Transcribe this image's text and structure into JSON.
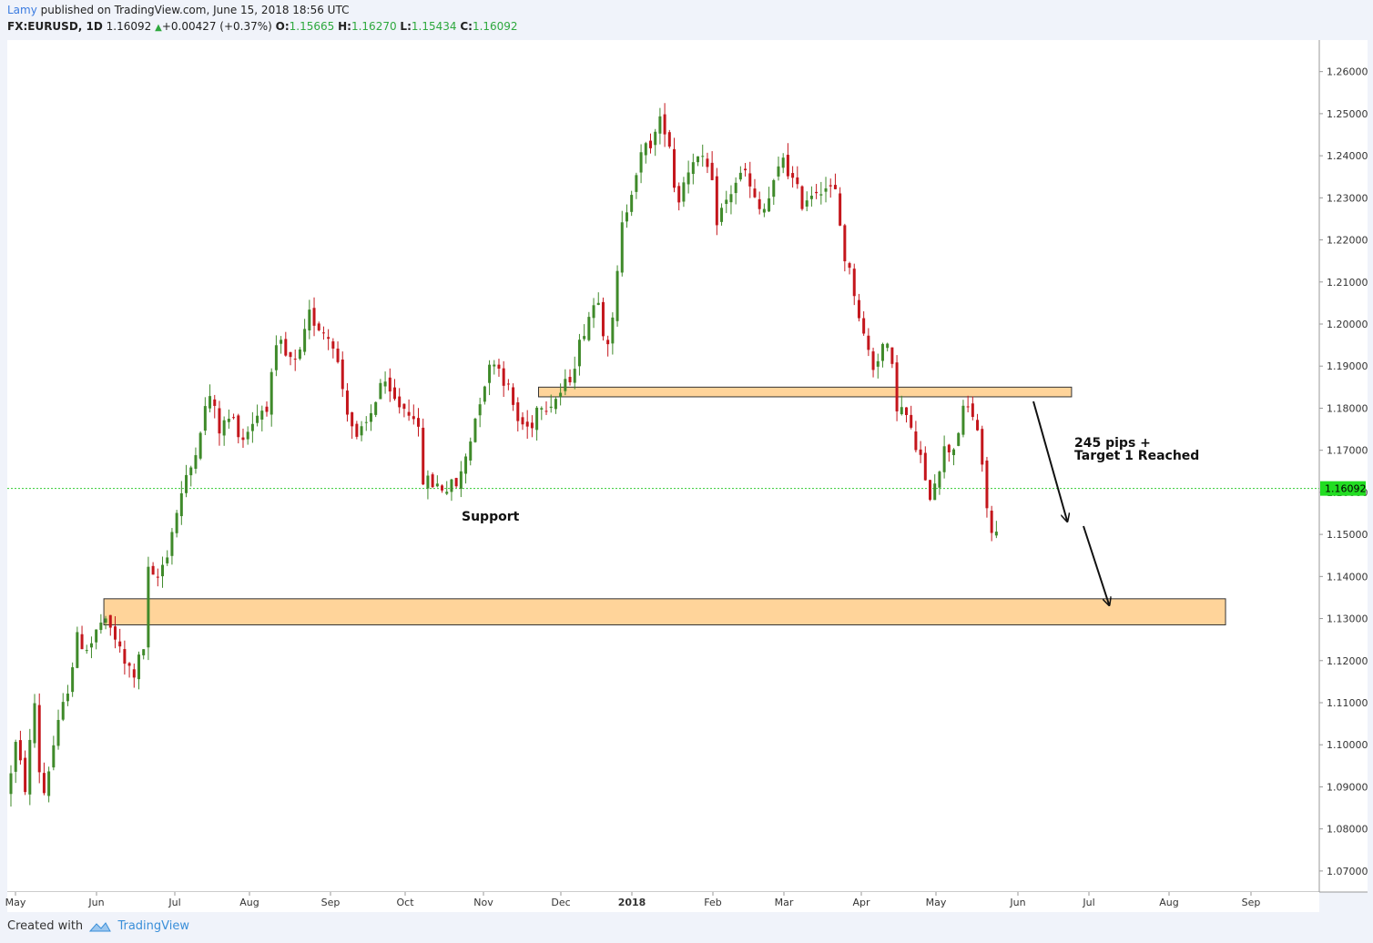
{
  "header": {
    "author": "Lamy",
    "published_text": "published on TradingView.com, June 15, 2018 18:56 UTC",
    "symbol": "FX:EURUSD, 1D",
    "last": "1.16092",
    "change": "+0.00427 (+0.37%)",
    "open_label": "O:",
    "open": "1.15665",
    "high_label": "H:",
    "high": "1.16270",
    "low_label": "L:",
    "low": "1.15434",
    "close_label": "C:",
    "close": "1.16092"
  },
  "footer": {
    "created_with": "Created with",
    "brand": "TradingView"
  },
  "colors": {
    "up": "#3f8a2a",
    "down": "#c4161c",
    "zone_fill": "#ffcc88",
    "zone_stroke": "#333333",
    "price_tag": "#22dd22"
  },
  "chart_data": {
    "type": "candlestick",
    "symbol": "FX:EURUSD",
    "timeframe": "1D",
    "ylim": [
      1.065,
      1.2675
    ],
    "y_ticks": [
      "1.26000",
      "1.25000",
      "1.24000",
      "1.23000",
      "1.22000",
      "1.21000",
      "1.20000",
      "1.19000",
      "1.18000",
      "1.17000",
      "1.16000",
      "1.15000",
      "1.14000",
      "1.13000",
      "1.12000",
      "1.11000",
      "1.10000",
      "1.09000",
      "1.08000",
      "1.07000"
    ],
    "x_ticks": [
      "May",
      "Jun",
      "Jul",
      "Aug",
      "Sep",
      "Oct",
      "Nov",
      "Dec",
      "2018",
      "Feb",
      "Mar",
      "Apr",
      "May",
      "Jun",
      "Jul",
      "Aug",
      "Sep"
    ],
    "current_price_label": "1.16092",
    "current_price": 1.16092,
    "path": [
      [
        0,
        1.088
      ],
      [
        8,
        1.1
      ],
      [
        16,
        1.09
      ],
      [
        24,
        1.11
      ],
      [
        30,
        1.086
      ],
      [
        40,
        1.1
      ],
      [
        50,
        1.111
      ],
      [
        60,
        1.125
      ],
      [
        70,
        1.123
      ],
      [
        80,
        1.129
      ],
      [
        90,
        1.127
      ],
      [
        100,
        1.119
      ],
      [
        108,
        1.117
      ],
      [
        116,
        1.123
      ],
      [
        120,
        1.141
      ],
      [
        126,
        1.138
      ],
      [
        136,
        1.146
      ],
      [
        146,
        1.158
      ],
      [
        156,
        1.166
      ],
      [
        166,
        1.178
      ],
      [
        172,
        1.183
      ],
      [
        180,
        1.175
      ],
      [
        190,
        1.178
      ],
      [
        200,
        1.173
      ],
      [
        210,
        1.178
      ],
      [
        220,
        1.181
      ],
      [
        230,
        1.196
      ],
      [
        236,
        1.192
      ],
      [
        246,
        1.19
      ],
      [
        256,
        1.202
      ],
      [
        266,
        1.199
      ],
      [
        276,
        1.196
      ],
      [
        286,
        1.182
      ],
      [
        296,
        1.172
      ],
      [
        306,
        1.177
      ],
      [
        316,
        1.186
      ],
      [
        326,
        1.182
      ],
      [
        336,
        1.18
      ],
      [
        346,
        1.179
      ],
      [
        352,
        1.163
      ],
      [
        362,
        1.162
      ],
      [
        372,
        1.161
      ],
      [
        382,
        1.162
      ],
      [
        392,
        1.173
      ],
      [
        402,
        1.185
      ],
      [
        412,
        1.192
      ],
      [
        422,
        1.186
      ],
      [
        432,
        1.177
      ],
      [
        442,
        1.175
      ],
      [
        450,
        1.182
      ],
      [
        458,
        1.181
      ],
      [
        466,
        1.183
      ],
      [
        474,
        1.186
      ],
      [
        482,
        1.193
      ],
      [
        490,
        1.201
      ],
      [
        500,
        1.207
      ],
      [
        506,
        1.195
      ],
      [
        512,
        1.2
      ],
      [
        520,
        1.223
      ],
      [
        530,
        1.235
      ],
      [
        538,
        1.241
      ],
      [
        546,
        1.244
      ],
      [
        554,
        1.249
      ],
      [
        560,
        1.243
      ],
      [
        566,
        1.228
      ],
      [
        572,
        1.234
      ],
      [
        580,
        1.24
      ],
      [
        588,
        1.238
      ],
      [
        594,
        1.236
      ],
      [
        600,
        1.225
      ],
      [
        608,
        1.229
      ],
      [
        616,
        1.234
      ],
      [
        624,
        1.236
      ],
      [
        630,
        1.23
      ],
      [
        638,
        1.226
      ],
      [
        646,
        1.231
      ],
      [
        656,
        1.24
      ],
      [
        662,
        1.235
      ],
      [
        672,
        1.229
      ],
      [
        682,
        1.232
      ],
      [
        690,
        1.233
      ],
      [
        700,
        1.231
      ],
      [
        708,
        1.216
      ],
      [
        716,
        1.208
      ],
      [
        724,
        1.197
      ],
      [
        732,
        1.19
      ],
      [
        740,
        1.195
      ],
      [
        746,
        1.193
      ],
      [
        752,
        1.181
      ],
      [
        760,
        1.178
      ],
      [
        766,
        1.172
      ],
      [
        772,
        1.168
      ],
      [
        778,
        1.158
      ],
      [
        786,
        1.165
      ],
      [
        792,
        1.17
      ],
      [
        800,
        1.171
      ],
      [
        808,
        1.179
      ],
      [
        814,
        1.18
      ],
      [
        820,
        1.175
      ],
      [
        826,
        1.16
      ],
      [
        832,
        1.15
      ]
    ],
    "zones": [
      {
        "name": "resistance-zone",
        "y_top": 1.185,
        "y_bottom": 1.1827,
        "x_start_idx": 447,
        "x_end_idx": 897
      },
      {
        "name": "target-zone",
        "y_top": 1.1347,
        "y_bottom": 1.1285,
        "x_start_idx": 80,
        "x_end_idx": 1027
      }
    ],
    "annotations": [
      {
        "name": "support-label",
        "text": "Support"
      },
      {
        "name": "target-label-1",
        "text": "245 pips +"
      },
      {
        "name": "target-label-2",
        "text": "Target 1 Reached"
      }
    ]
  }
}
